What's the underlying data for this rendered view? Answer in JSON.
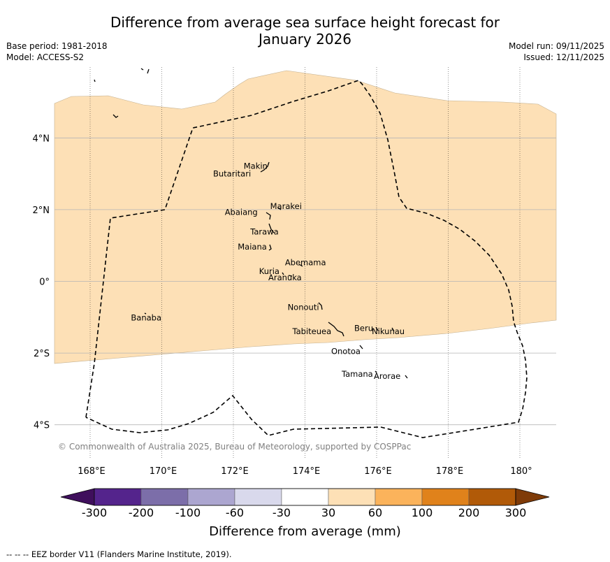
{
  "title": {
    "line1": "Difference from average sea surface height forecast for",
    "line2": "January 2026"
  },
  "meta_left": {
    "base_period": "Base period: 1981-2018",
    "model": "Model: ACCESS-S2"
  },
  "meta_right": {
    "model_run": "Model run: 09/11/2025",
    "issued": "Issued: 12/11/2025"
  },
  "map": {
    "lon_ticks": [
      {
        "lon": 168,
        "label": "168°E"
      },
      {
        "lon": 170,
        "label": "170°E"
      },
      {
        "lon": 172,
        "label": "172°E"
      },
      {
        "lon": 174,
        "label": "174°E"
      },
      {
        "lon": 176,
        "label": "176°E"
      },
      {
        "lon": 178,
        "label": "178°E"
      },
      {
        "lon": 180,
        "label": "180°"
      }
    ],
    "lat_ticks": [
      {
        "lat": 4,
        "label": "4°N"
      },
      {
        "lat": 2,
        "label": "2°N"
      },
      {
        "lat": 0,
        "label": "0°"
      },
      {
        "lat": -2,
        "label": "2°S"
      },
      {
        "lat": -4,
        "label": "4°S"
      }
    ],
    "islands": [
      {
        "name": "Makin",
        "lon": 172.99,
        "lat": 3.08
      },
      {
        "name": "Butaritari",
        "lon": 172.8,
        "lat": 3.1
      },
      {
        "name": "Marakei",
        "lon": 173.3,
        "lat": 2.0
      },
      {
        "name": "Abaiang",
        "lon": 172.95,
        "lat": 1.85
      },
      {
        "name": "Tarawa",
        "lon": 173.0,
        "lat": 1.42
      },
      {
        "name": "Maiana",
        "lon": 173.0,
        "lat": 0.95
      },
      {
        "name": "Abemama",
        "lon": 173.85,
        "lat": 0.45
      },
      {
        "name": "Kuria",
        "lon": 173.4,
        "lat": 0.2
      },
      {
        "name": "Aranuka",
        "lon": 173.6,
        "lat": 0.15
      },
      {
        "name": "Nonouti",
        "lon": 174.45,
        "lat": -0.66
      },
      {
        "name": "Banaba",
        "lon": 169.53,
        "lat": -0.86
      },
      {
        "name": "Tabiteuea",
        "lon": 174.8,
        "lat": -1.3
      },
      {
        "name": "Beru",
        "lon": 176.0,
        "lat": -1.33
      },
      {
        "name": "Nikunau",
        "lon": 176.45,
        "lat": -1.35
      },
      {
        "name": "Onotoa",
        "lon": 175.55,
        "lat": -1.85
      },
      {
        "name": "Tamana",
        "lon": 175.98,
        "lat": -2.5
      },
      {
        "name": "Arorae",
        "lon": 176.82,
        "lat": -2.64
      }
    ],
    "copyright": "© Commonwealth of Australia 2025, Bureau of Meteorology, supported by COSPPac"
  },
  "legend": {
    "title": "Difference from average (mm)",
    "tick_labels": [
      "-300",
      "-200",
      "-100",
      "-60",
      "-30",
      "30",
      "60",
      "100",
      "200",
      "300"
    ],
    "colors": [
      "#3f0f5c",
      "#54248c",
      "#7c6ea9",
      "#aca6d0",
      "#d9d9ec",
      "#ffffff",
      "#fde0b6",
      "#fbb35b",
      "#e0821b",
      "#b15a08",
      "#7f3b08"
    ]
  },
  "footer": "--  --  -- EEZ border V11 (Flanders Marine Institute, 2019)."
}
